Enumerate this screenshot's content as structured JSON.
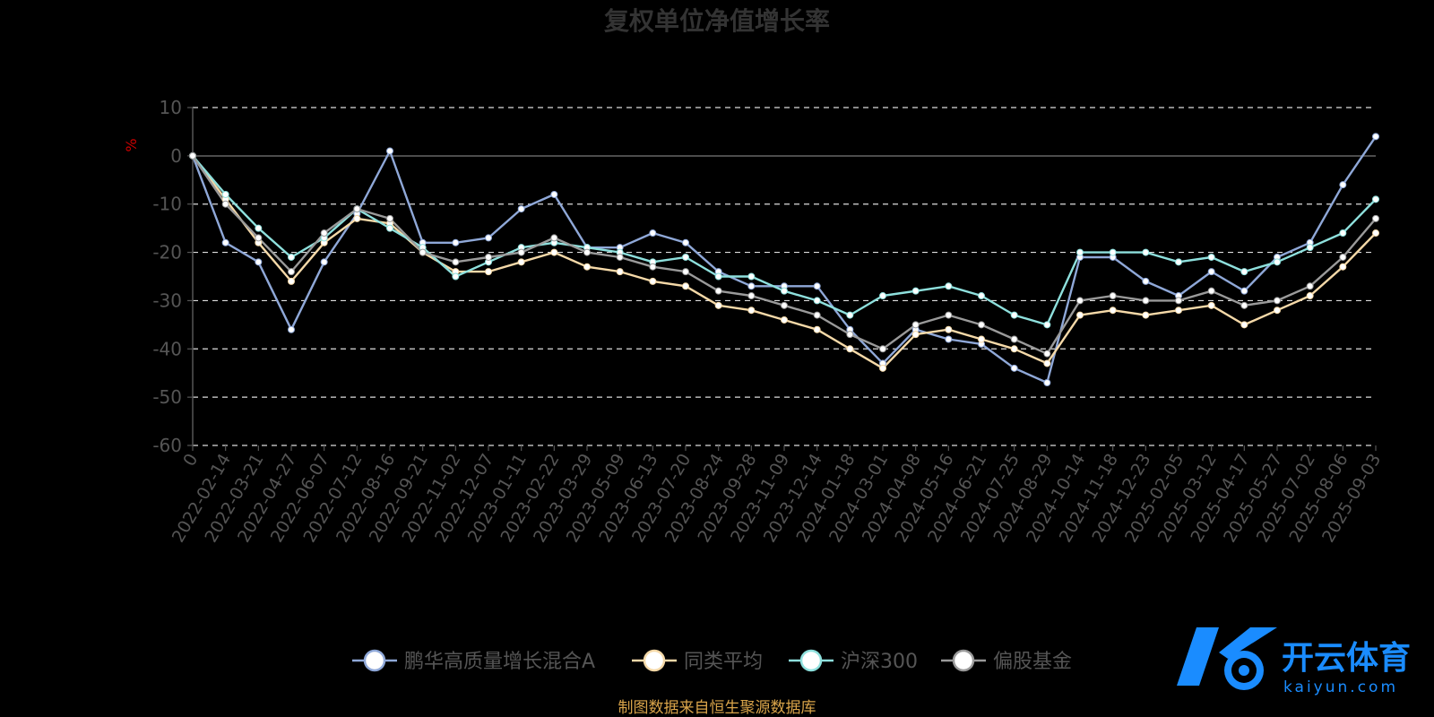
{
  "chart_data": {
    "type": "line",
    "title": "复权单位净值增长率",
    "ylabel": "%",
    "xlabel": "",
    "ylim": [
      -60,
      10
    ],
    "yticks": [
      10,
      0,
      -10,
      -20,
      -30,
      -40,
      -50,
      -60
    ],
    "grid": true,
    "legend_position": "bottom-center",
    "x_ticks": [
      "0",
      "2022-02-14",
      "2022-03-21",
      "2022-04-27",
      "2022-06-07",
      "2022-07-12",
      "2022-08-16",
      "2022-09-21",
      "2022-11-02",
      "2022-12-07",
      "2023-01-11",
      "2023-02-22",
      "2023-03-29",
      "2023-05-09",
      "2023-06-13",
      "2023-07-20",
      "2023-08-24",
      "2023-09-28",
      "2023-11-09",
      "2023-12-14",
      "2024-01-18",
      "2024-03-01",
      "2024-04-08",
      "2024-05-16",
      "2024-06-21",
      "2024-07-25",
      "2024-08-29",
      "2024-10-14",
      "2024-11-18",
      "2024-12-23",
      "2025-02-05",
      "2025-03-12",
      "2025-04-17",
      "2025-05-27",
      "2025-07-02",
      "2025-08-06",
      "2025-09-03"
    ],
    "series": [
      {
        "name": "鹏华高质量增长混合A",
        "color": "#8fa8d8",
        "values": [
          0,
          -18,
          -22,
          -36,
          -22,
          -12,
          1,
          -18,
          -18,
          -17,
          -11,
          -8,
          -19,
          -19,
          -16,
          -18,
          -24,
          -27,
          -27,
          -27,
          -36,
          -43,
          -36,
          -38,
          -39,
          -44,
          -47,
          -21,
          -21,
          -26,
          -29,
          -24,
          -28,
          -21,
          -18,
          -6,
          4
        ]
      },
      {
        "name": "同类平均",
        "color": "#f5d9a8",
        "values": [
          0,
          -9,
          -18,
          -26,
          -18,
          -13,
          -14,
          -20,
          -24,
          -24,
          -22,
          -20,
          -23,
          -24,
          -26,
          -27,
          -31,
          -32,
          -34,
          -36,
          -40,
          -44,
          -37,
          -36,
          -38,
          -40,
          -43,
          -33,
          -32,
          -33,
          -32,
          -31,
          -35,
          -32,
          -29,
          -23,
          -16
        ]
      },
      {
        "name": "沪深300",
        "color": "#8ee0dd",
        "values": [
          0,
          -8,
          -15,
          -21,
          -17,
          -11,
          -15,
          -19,
          -25,
          -22,
          -19,
          -18,
          -19,
          -20,
          -22,
          -21,
          -25,
          -25,
          -28,
          -30,
          -33,
          -29,
          -28,
          -27,
          -29,
          -33,
          -35,
          -20,
          -20,
          -20,
          -22,
          -21,
          -24,
          -22,
          -19,
          -16,
          -9
        ]
      },
      {
        "name": "偏股基金",
        "color": "#9a9a9a",
        "values": [
          0,
          -10,
          -17,
          -24,
          -16,
          -11,
          -13,
          -20,
          -22,
          -21,
          -20,
          -17,
          -20,
          -21,
          -23,
          -24,
          -28,
          -29,
          -31,
          -33,
          -37,
          -40,
          -35,
          -33,
          -35,
          -38,
          -41,
          -30,
          -29,
          -30,
          -30,
          -28,
          -31,
          -30,
          -27,
          -21,
          -13
        ]
      }
    ]
  },
  "source_note": "制图数据来自恒生聚源数据库",
  "watermark": {
    "brand": "开云体育",
    "domain": "kaiyun.com"
  }
}
